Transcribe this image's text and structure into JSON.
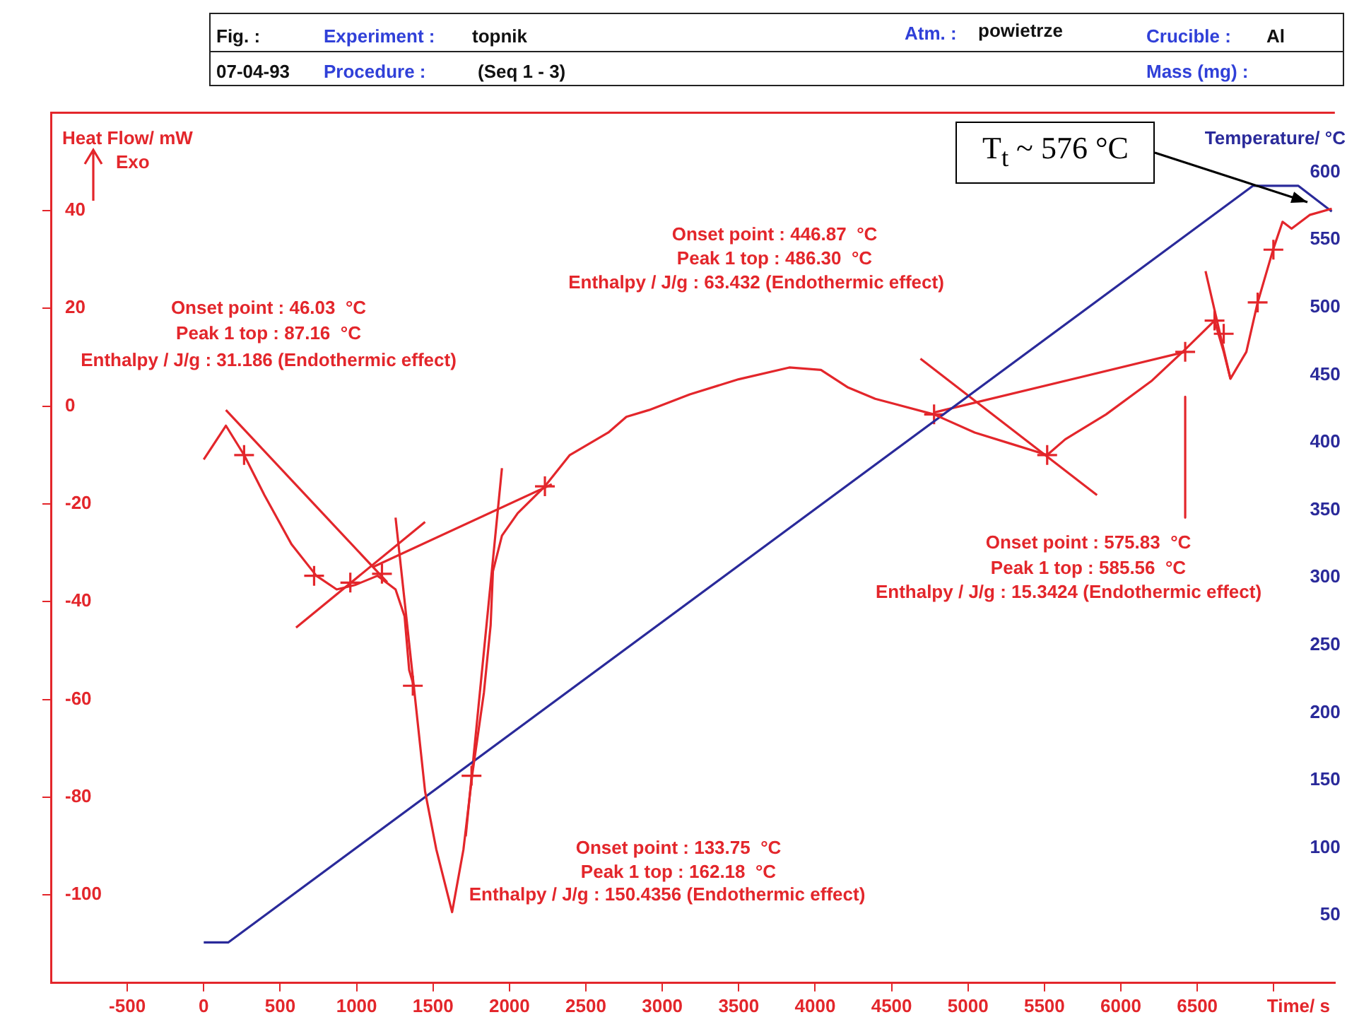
{
  "chart_data": {
    "type": "line",
    "ylabel": "Heat Flow/ mW",
    "y2label": "Temperature/ °C",
    "xlabel": "Time/ s",
    "xlim": [
      -1000,
      7400
    ],
    "xticks": [
      -500,
      0,
      500,
      1000,
      1500,
      2000,
      2500,
      3000,
      3500,
      4000,
      4500,
      5000,
      5500,
      6000,
      6500,
      {
        "value": 7000,
        "label": null
      }
    ],
    "ylim": [
      -118,
      60
    ],
    "yticks": [
      -100,
      -80,
      -60,
      -40,
      -20,
      0,
      20,
      40
    ],
    "y2lim": [
      0,
      644
    ],
    "y2ticks": [
      50,
      100,
      150,
      200,
      250,
      300,
      350,
      400,
      450,
      500,
      550,
      600
    ],
    "grid": false,
    "annotations": [
      "Fig. :",
      "Experiment :",
      "topnik",
      "Atm. :",
      "powietrze",
      "Crucible :",
      "Al",
      "07-04-93",
      "Procedure :",
      "(Seq 1 - 3)",
      "Mass (mg) :",
      "Exo",
      "Onset point : 46.03  °C",
      "Peak 1 top : 87.16  °C",
      "Enthalpy / J/g : 31.186 (Endothermic effect)",
      "Onset point : 446.87  °C",
      "Peak 1 top : 486.30  °C",
      "Enthalpy / J/g : 63.432 (Endothermic effect)",
      "Onset point : 575.83  °C",
      "Peak 1 top : 585.56  °C",
      "Enthalpy / J/g : 15.3424 (Endothermic effect)",
      "Onset point : 133.75  °C",
      "Peak 1 top : 162.18  °C",
      "Enthalpy / J/g : 150.4356 (Endothermic effect)",
      "T$_{t}$ ~ 576 °C"
    ],
    "series": [
      {
        "type": "line",
        "color": "#e3262b",
        "marker": "none",
        "x": [
          0,
          145,
          264,
          397,
          575,
          737,
          870,
          989,
          1137,
          1255,
          1314,
          1344,
          1374,
          1448,
          1521,
          1625,
          1699,
          1758,
          1833,
          1877,
          1892,
          1951,
          2054,
          2232,
          2395,
          2647,
          2765,
          2913,
          3180,
          3500,
          3831,
          4038,
          4216,
          4393,
          4778,
          5044,
          5281,
          5518,
          5636,
          5903,
          6199,
          6421,
          6613,
          6673,
          6717,
          6821,
          6895,
          6998,
          7058,
          7117,
          7235,
          7380
        ],
        "values": [
          -10.9,
          -4.0,
          -10,
          -18.2,
          -28.3,
          -34.7,
          -37.5,
          -36.6,
          -34.7,
          -37.5,
          -43,
          -54,
          -57.2,
          -78.8,
          -90.6,
          -103.5,
          -90.7,
          -75.1,
          -58.6,
          -44.8,
          -33.8,
          -26.5,
          -21.9,
          -16.4,
          -10,
          -5.4,
          -2.2,
          -0.8,
          2.4,
          5.5,
          7.9,
          7.4,
          3.8,
          1.5,
          -1.7,
          -5.4,
          -7.7,
          -10,
          -6.8,
          -1.7,
          5.1,
          11.6,
          17.5,
          11.1,
          5.6,
          11.1,
          21.2,
          32.2,
          37.7,
          36.3,
          39.1,
          40.4
        ]
      },
      {
        "type": "line",
        "color": "#2a2a9a",
        "marker": "none",
        "axis": "y2",
        "x": [
          0,
          160,
          6865,
          7160,
          7380
        ],
        "values": [
          30,
          30,
          590,
          590,
          571
        ]
      },
      {
        "type": "line",
        "color": "#e3262b",
        "marker": "none",
        "x": [
          145,
          1200
        ],
        "values": [
          -0.8,
          -36
        ]
      },
      {
        "type": "line",
        "color": "#e3262b",
        "marker": "none",
        "x": [
          604,
          1448
        ],
        "values": [
          -45.3,
          -23.7
        ]
      },
      {
        "type": "line",
        "color": "#e3262b",
        "marker": "none",
        "x": [
          1107,
          2277
        ],
        "values": [
          -32.9,
          -16.0
        ]
      },
      {
        "type": "line",
        "color": "#e3262b",
        "marker": "none",
        "x": [
          1255,
          1374
        ],
        "values": [
          -22.8,
          -57.2
        ]
      },
      {
        "type": "line",
        "color": "#e3262b",
        "marker": "none",
        "x": [
          1951,
          1714
        ],
        "values": [
          -12.7,
          -88
        ]
      },
      {
        "type": "line",
        "color": "#e3262b",
        "marker": "none",
        "x": [
          4689,
          5844
        ],
        "values": [
          9.7,
          -18.2
        ]
      },
      {
        "type": "line",
        "color": "#e3262b",
        "marker": "none",
        "x": [
          4778,
          6421
        ],
        "values": [
          -1.3,
          11.1
        ]
      },
      {
        "type": "line",
        "color": "#e3262b",
        "marker": "none",
        "x": [
          6554,
          6717
        ],
        "values": [
          27.6,
          5.6
        ]
      },
      {
        "type": "line",
        "color": "#e3262b",
        "marker": "none",
        "x": [
          6421,
          6421
        ],
        "values": [
          1.9,
          -22.8
        ]
      },
      {
        "type": "scatter",
        "color": "#e3262b",
        "marker": "cross",
        "x": [
          264,
          722,
          959,
          1166,
          2232,
          1368,
          1752,
          4778,
          5518,
          6421,
          6613,
          6673,
          6895,
          6998
        ],
        "values": [
          -10,
          -34.7,
          -36.1,
          -34.3,
          -16.4,
          -57.2,
          -75.6,
          -1.7,
          -10,
          11.1,
          17.5,
          14.8,
          21.2,
          32
        ]
      }
    ]
  }
}
